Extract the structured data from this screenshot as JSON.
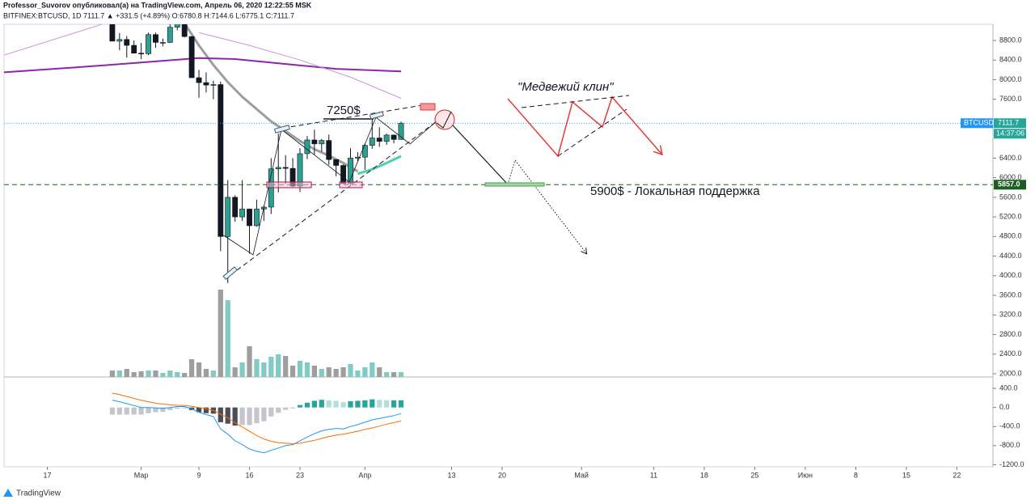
{
  "header": {
    "author_line": "Professor_Suvorov опубликовал(а) на TradingView.com, Апрель 06, 2020 12:22:55 MSK",
    "symbol_line": "BITFINEX:BTCUSD, 1D 7111.7 ▲ +331.5 (+4.89%) O:6780.8 H:7144.6 L:6775.1 C:7111.7"
  },
  "footer": {
    "brand": "TradingView"
  },
  "chart_data": {
    "type": "candlestick",
    "up_color": "#2e9e8e",
    "down_color": "#131722",
    "xlim": [
      "2020-02-11",
      "2020-06-27"
    ],
    "ylim": [
      1934,
      9130
    ],
    "xticks": [
      {
        "value": "2020-02-17",
        "label": "17"
      },
      {
        "value": "2020-03-01",
        "label": "Мар"
      },
      {
        "value": "2020-03-09",
        "label": "9"
      },
      {
        "value": "2020-03-16",
        "label": "16"
      },
      {
        "value": "2020-03-23",
        "label": "23"
      },
      {
        "value": "2020-04-01",
        "label": "Апр"
      },
      {
        "value": "2020-04-13",
        "label": "13"
      },
      {
        "value": "2020-04-20",
        "label": "20"
      },
      {
        "value": "2020-05-01",
        "label": "Май"
      },
      {
        "value": "2020-05-11",
        "label": "11"
      },
      {
        "value": "2020-05-18",
        "label": "18"
      },
      {
        "value": "2020-05-25",
        "label": "25"
      },
      {
        "value": "2020-06-01",
        "label": "Июн"
      },
      {
        "value": "2020-06-08",
        "label": "8"
      },
      {
        "value": "2020-06-15",
        "label": "15"
      },
      {
        "value": "2020-06-22",
        "label": "22"
      }
    ],
    "yticks": [
      {
        "value": 2000,
        "label": "2000.0"
      },
      {
        "value": 2400,
        "label": "2400.0"
      },
      {
        "value": 2800,
        "label": "2800.0"
      },
      {
        "value": 3200,
        "label": "3200.0"
      },
      {
        "value": 3600,
        "label": "3600.0"
      },
      {
        "value": 4000,
        "label": "4000.0"
      },
      {
        "value": 4400,
        "label": "4400.0"
      },
      {
        "value": 4800,
        "label": "4800.0"
      },
      {
        "value": 5200,
        "label": "5200.0"
      },
      {
        "value": 5600,
        "label": "5600.0"
      },
      {
        "value": 6000,
        "label": "6000.0"
      },
      {
        "value": 6400,
        "label": "6400.0"
      },
      {
        "value": 7600,
        "label": "7600.0"
      },
      {
        "value": 8000,
        "label": "8000.0"
      },
      {
        "value": 8400,
        "label": "8400.0"
      },
      {
        "value": 8800,
        "label": "8800.0"
      }
    ],
    "x": [
      "2020-02-26",
      "2020-02-27",
      "2020-02-28",
      "2020-02-29",
      "2020-03-01",
      "2020-03-02",
      "2020-03-03",
      "2020-03-04",
      "2020-03-05",
      "2020-03-06",
      "2020-03-07",
      "2020-03-08",
      "2020-03-09",
      "2020-03-10",
      "2020-03-11",
      "2020-03-12",
      "2020-03-13",
      "2020-03-14",
      "2020-03-15",
      "2020-03-16",
      "2020-03-17",
      "2020-03-18",
      "2020-03-19",
      "2020-03-20",
      "2020-03-21",
      "2020-03-22",
      "2020-03-23",
      "2020-03-24",
      "2020-03-25",
      "2020-03-26",
      "2020-03-27",
      "2020-03-28",
      "2020-03-29",
      "2020-03-30",
      "2020-03-31",
      "2020-04-01",
      "2020-04-02",
      "2020-04-03",
      "2020-04-04",
      "2020-04-05",
      "2020-04-06"
    ],
    "open": [
      9315,
      8785,
      8820,
      8700,
      8540,
      8530,
      8920,
      8760,
      8760,
      9070,
      9150,
      8880,
      8040,
      7940,
      7890,
      7900,
      4800,
      5600,
      5200,
      5360,
      5020,
      5360,
      5400,
      6180,
      6210,
      6190,
      5830,
      6490,
      6770,
      6690,
      6760,
      6370,
      6250,
      5880,
      6400,
      6420,
      6660,
      6810,
      6740,
      6870,
      6780.8
    ],
    "high": [
      9375,
      8950,
      8890,
      8800,
      8750,
      8960,
      8960,
      8840,
      9150,
      9170,
      9200,
      8880,
      8200,
      8150,
      7980,
      7960,
      5950,
      5640,
      5950,
      5370,
      5550,
      5440,
      6400,
      6900,
      6460,
      6400,
      6600,
      6850,
      6980,
      6790,
      6880,
      6370,
      6270,
      6600,
      6520,
      6700,
      7200,
      7030,
      6900,
      6880,
      7144.6
    ],
    "low": [
      8800,
      8600,
      8450,
      8540,
      8420,
      8500,
      8650,
      8680,
      8750,
      9010,
      8860,
      8040,
      7630,
      7740,
      7600,
      4500,
      3850,
      5100,
      5120,
      4450,
      5000,
      5120,
      5260,
      5700,
      5870,
      5800,
      5710,
      6380,
      6470,
      6530,
      6260,
      6030,
      5880,
      5860,
      6330,
      6160,
      6590,
      6630,
      6670,
      6700,
      6775.1
    ],
    "close": [
      8785,
      8820,
      8700,
      8540,
      8530,
      8920,
      8760,
      8760,
      9070,
      9150,
      8880,
      8040,
      7940,
      7890,
      7900,
      4800,
      5600,
      5200,
      5360,
      5020,
      5360,
      5400,
      6180,
      6210,
      6190,
      5830,
      6490,
      6770,
      6690,
      6760,
      6370,
      6250,
      5880,
      6400,
      6420,
      6660,
      6810,
      6740,
      6870,
      6780,
      7111.7
    ],
    "volume": [
      8,
      8,
      10,
      6,
      7,
      8,
      8,
      5,
      8,
      6,
      5,
      22,
      18,
      10,
      8,
      108,
      95,
      12,
      18,
      38,
      22,
      18,
      25,
      28,
      26,
      14,
      20,
      18,
      14,
      10,
      12,
      10,
      12,
      16,
      8,
      12,
      18,
      12,
      6,
      6,
      6
    ],
    "lines": [
      {
        "color": "#9e9e9e",
        "width": 3,
        "x": [
          "2020-03-07",
          "2020-03-09",
          "2020-03-11",
          "2020-03-13",
          "2020-03-15",
          "2020-03-17",
          "2020-03-19",
          "2020-03-21",
          "2020-03-23",
          "2020-03-25",
          "2020-03-27",
          "2020-03-29",
          "2020-03-31"
        ],
        "values": [
          9150,
          8700,
          8300,
          7950,
          7650,
          7400,
          7150,
          6950,
          6750,
          6580,
          6450,
          6300,
          6130
        ]
      },
      {
        "color": "#4dd0b1",
        "width": 3,
        "x": [
          "2020-03-31",
          "2020-04-02",
          "2020-04-04",
          "2020-04-06"
        ],
        "values": [
          6080,
          6170,
          6300,
          6440
        ]
      },
      {
        "color": "#8e24aa",
        "width": 2,
        "x": [
          "2020-02-11",
          "2020-02-21",
          "2020-03-01",
          "2020-03-09",
          "2020-03-14",
          "2020-03-21",
          "2020-03-28",
          "2020-04-06"
        ],
        "values": [
          8150,
          8250,
          8350,
          8440,
          8420,
          8320,
          8220,
          8170
        ]
      },
      {
        "color": "#ce93d8",
        "width": 1,
        "x": [
          "2020-02-11",
          "2020-02-25",
          "2020-03-02",
          "2020-03-09",
          "2020-03-16",
          "2020-03-23",
          "2020-03-30",
          "2020-04-06"
        ],
        "values": [
          8500,
          9150,
          null,
          8960,
          8700,
          8400,
          8050,
          7620
        ]
      }
    ],
    "last_price": {
      "symbol": "BTCUSD",
      "countdown": "14:37:06",
      "color": "#2196f3"
    },
    "level": {
      "value": 5857,
      "label": "5857.0",
      "color": "#1b5e20"
    },
    "annotations": {
      "target": "7250$",
      "wedge": "\"Медвежий клин\"",
      "support": "5900$ - Локальная поддержка"
    },
    "macd": {
      "ylim": [
        -1244,
        622
      ],
      "yticks": [
        {
          "value": 400,
          "label": "400.0"
        },
        {
          "value": 0,
          "label": "0.0"
        },
        {
          "value": -400,
          "label": "-400.0"
        },
        {
          "value": -800,
          "label": "-800.0"
        },
        {
          "value": -1200,
          "label": "-1200.0"
        }
      ],
      "macd_line": {
        "color": "#2196f3",
        "values": [
          150,
          120,
          80,
          40,
          0,
          0,
          -10,
          -20,
          0,
          20,
          20,
          -30,
          -100,
          -150,
          -190,
          -450,
          -560,
          -700,
          -780,
          -870,
          -920,
          -950,
          -900,
          -850,
          -800,
          -780,
          -700,
          -620,
          -550,
          -490,
          -460,
          -440,
          -450,
          -400,
          -360,
          -310,
          -260,
          -230,
          -200,
          -170,
          -130
        ]
      },
      "signal_line": {
        "color": "#ff6d00",
        "values": [
          300,
          270,
          230,
          190,
          150,
          120,
          90,
          70,
          55,
          45,
          40,
          25,
          0,
          -30,
          -60,
          -140,
          -220,
          -320,
          -410,
          -500,
          -590,
          -660,
          -710,
          -740,
          -750,
          -760,
          -750,
          -720,
          -690,
          -650,
          -610,
          -580,
          -560,
          -530,
          -500,
          -460,
          -430,
          -390,
          -350,
          -320,
          -280
        ]
      },
      "histogram": [
        -150,
        -150,
        -150,
        -150,
        -150,
        -120,
        -100,
        -90,
        -55,
        -25,
        -20,
        -55,
        -100,
        -120,
        -130,
        -310,
        -340,
        -380,
        -370,
        -370,
        -330,
        -290,
        -190,
        -110,
        -50,
        -20,
        50,
        100,
        140,
        160,
        150,
        140,
        110,
        130,
        140,
        150,
        170,
        160,
        150,
        150,
        150
      ]
    }
  }
}
